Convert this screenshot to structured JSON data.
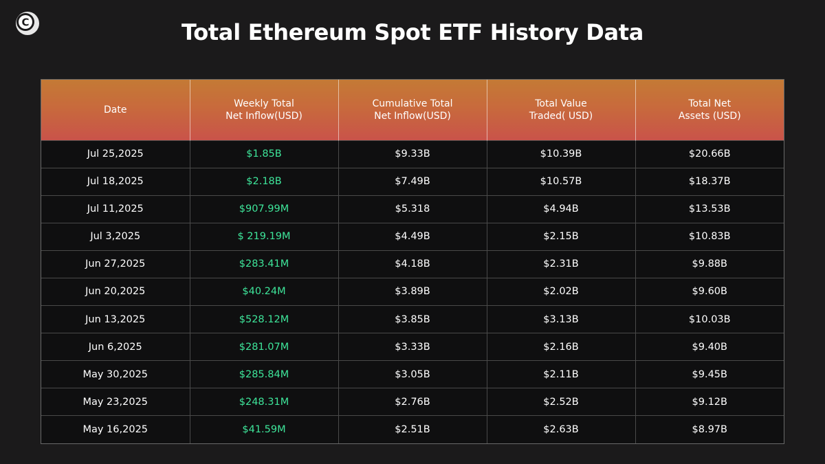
{
  "title": "Total Ethereum Spot ETF History Data",
  "logo_icon": "c-logo-icon",
  "colors": {
    "background": "#1b1a1b",
    "header_gradient_top": "#c47a35",
    "header_gradient_bottom": "#c9534a",
    "inflow_text": "#3ee59a",
    "text": "#ffffff"
  },
  "chart_data": {
    "type": "table",
    "title": "Total Ethereum Spot ETF History Data",
    "columns": [
      "Date",
      "Weekly Total\nNet Inflow(USD)",
      "Cumulative Total\nNet Inflow(USD)",
      "Total Value\nTraded( USD)",
      "Total Net\nAssets (USD)"
    ],
    "rows": [
      [
        "Jul 25,2025",
        "$1.85B",
        "$9.33B",
        "$10.39B",
        "$20.66B"
      ],
      [
        "Jul 18,2025",
        "$2.18B",
        "$7.49B",
        "$10.57B",
        "$18.37B"
      ],
      [
        "Jul 11,2025",
        "$907.99M",
        "$5.318",
        "$4.94B",
        "$13.53B"
      ],
      [
        "Jul 3,2025",
        "$ 219.19M",
        "$4.49B",
        "$2.15B",
        "$10.83B"
      ],
      [
        "Jun 27,2025",
        "$283.41M",
        "$4.18B",
        "$2.31B",
        "$9.88B"
      ],
      [
        "Jun 20,2025",
        "$40.24M",
        "$3.89B",
        "$2.02B",
        "$9.60B"
      ],
      [
        "Jun 13,2025",
        "$528.12M",
        "$3.85B",
        "$3.13B",
        "$10.03B"
      ],
      [
        "Jun 6,2025",
        "$281.07M",
        "$3.33B",
        "$2.16B",
        "$9.40B"
      ],
      [
        "May 30,2025",
        "$285.84M",
        "$3.05B",
        "$2.11B",
        "$9.45B"
      ],
      [
        "May 23,2025",
        "$248.31M",
        "$2.76B",
        "$2.52B",
        "$9.12B"
      ],
      [
        "May 16,2025",
        "$41.59M",
        "$2.51B",
        "$2.63B",
        "$8.97B"
      ]
    ]
  }
}
